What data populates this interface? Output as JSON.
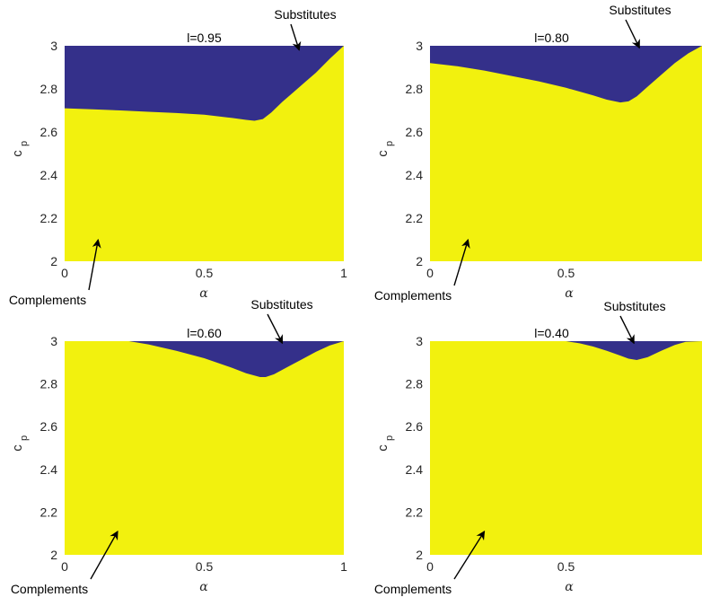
{
  "chart_data": [
    {
      "type": "area",
      "title": "l=0.95",
      "xlabel": "α",
      "ylabel": "c",
      "ylabel_subscript": "p",
      "xlim": [
        0,
        1
      ],
      "ylim": [
        2,
        3
      ],
      "xticks": [
        "0",
        "0.5",
        "1"
      ],
      "yticks": [
        "2",
        "2.2",
        "2.4",
        "2.6",
        "2.8",
        "3"
      ],
      "colors": {
        "complements": "#F2F10E",
        "substitutes": "#34308A"
      },
      "regions": {
        "upper": "Substitutes",
        "lower": "Complements"
      },
      "boundary": {
        "x": [
          0.0,
          0.1,
          0.2,
          0.3,
          0.4,
          0.5,
          0.6,
          0.65,
          0.68,
          0.71,
          0.74,
          0.78,
          0.82,
          0.86,
          0.9,
          0.95,
          1.0
        ],
        "y": [
          2.71,
          2.705,
          2.7,
          2.694,
          2.688,
          2.68,
          2.665,
          2.656,
          2.652,
          2.66,
          2.69,
          2.74,
          2.785,
          2.83,
          2.875,
          2.94,
          3.0
        ]
      },
      "annotations": [
        {
          "text": "Substitutes",
          "x": 0.84,
          "y": 2.98
        },
        {
          "text": "Complements",
          "x": 0.12,
          "y": 2.1
        }
      ]
    },
    {
      "type": "area",
      "title": "l=0.80",
      "xlabel": "α",
      "ylabel": "c",
      "ylabel_subscript": "p",
      "xlim": [
        0,
        1
      ],
      "ylim": [
        2,
        3
      ],
      "xticks": [
        "0",
        "0.5"
      ],
      "yticks": [
        "2",
        "2.2",
        "2.4",
        "2.6",
        "2.8",
        "3"
      ],
      "colors": {
        "complements": "#F2F10E",
        "substitutes": "#34308A"
      },
      "regions": {
        "upper": "Substitutes",
        "lower": "Complements"
      },
      "boundary": {
        "x": [
          0.0,
          0.1,
          0.2,
          0.3,
          0.4,
          0.5,
          0.6,
          0.65,
          0.7,
          0.73,
          0.76,
          0.8,
          0.85,
          0.9,
          0.95,
          1.0
        ],
        "y": [
          2.92,
          2.905,
          2.885,
          2.86,
          2.835,
          2.805,
          2.77,
          2.75,
          2.737,
          2.742,
          2.765,
          2.81,
          2.865,
          2.92,
          2.965,
          3.0
        ]
      },
      "annotations": [
        {
          "text": "Substitutes",
          "x": 0.77,
          "y": 2.99
        },
        {
          "text": "Complements",
          "x": 0.14,
          "y": 2.1
        }
      ]
    },
    {
      "type": "area",
      "title": "l=0.60",
      "xlabel": "α",
      "ylabel": "c",
      "ylabel_subscript": "p",
      "xlim": [
        0,
        1
      ],
      "ylim": [
        2,
        3
      ],
      "xticks": [
        "0",
        "0.5",
        "1"
      ],
      "yticks": [
        "2",
        "2.2",
        "2.4",
        "2.6",
        "2.8",
        "3"
      ],
      "colors": {
        "complements": "#F2F10E",
        "substitutes": "#34308A"
      },
      "regions": {
        "upper": "Substitutes",
        "lower": "Complements"
      },
      "boundary": {
        "x": [
          0.23,
          0.3,
          0.4,
          0.5,
          0.6,
          0.65,
          0.7,
          0.72,
          0.75,
          0.8,
          0.85,
          0.9,
          0.95,
          1.0
        ],
        "y": [
          3.0,
          2.985,
          2.955,
          2.92,
          2.875,
          2.85,
          2.832,
          2.832,
          2.845,
          2.88,
          2.915,
          2.95,
          2.98,
          3.0
        ]
      },
      "annotations": [
        {
          "text": "Substitutes",
          "x": 0.78,
          "y": 2.99
        },
        {
          "text": "Complements",
          "x": 0.19,
          "y": 2.11
        }
      ]
    },
    {
      "type": "area",
      "title": "l=0.40",
      "xlabel": "α",
      "ylabel": "c",
      "ylabel_subscript": "p",
      "xlim": [
        0,
        1
      ],
      "ylim": [
        2,
        3
      ],
      "xticks": [
        "0",
        "0.5"
      ],
      "yticks": [
        "2",
        "2.2",
        "2.4",
        "2.6",
        "2.8",
        "3"
      ],
      "colors": {
        "complements": "#F2F10E",
        "substitutes": "#34308A"
      },
      "regions": {
        "upper": "Substitutes",
        "lower": "Complements"
      },
      "boundary": {
        "x": [
          0.5,
          0.55,
          0.6,
          0.65,
          0.7,
          0.73,
          0.76,
          0.8,
          0.85,
          0.9,
          0.94,
          1.0
        ],
        "y": [
          3.0,
          2.99,
          2.975,
          2.955,
          2.932,
          2.918,
          2.912,
          2.925,
          2.955,
          2.982,
          2.997,
          3.0
        ]
      },
      "annotations": [
        {
          "text": "Substitutes",
          "x": 0.75,
          "y": 2.99
        },
        {
          "text": "Complements",
          "x": 0.2,
          "y": 2.11
        }
      ]
    }
  ]
}
